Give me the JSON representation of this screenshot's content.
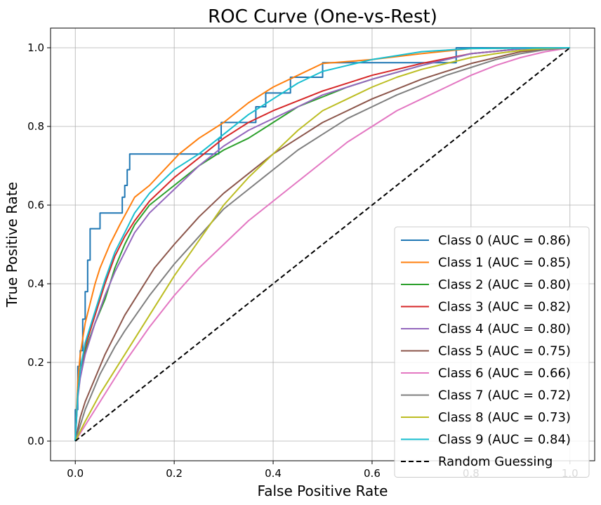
{
  "chart_data": {
    "type": "line",
    "title": "ROC Curve (One-vs-Rest)",
    "xlabel": "False Positive Rate",
    "ylabel": "True Positive Rate",
    "xlim": [
      -0.05,
      1.05
    ],
    "ylim": [
      -0.05,
      1.05
    ],
    "xticks": [
      0.0,
      0.2,
      0.4,
      0.6,
      0.8,
      1.0
    ],
    "yticks": [
      0.0,
      0.2,
      0.4,
      0.6,
      0.8,
      1.0
    ],
    "xtick_labels": [
      "0.0",
      "0.2",
      "0.4",
      "0.6",
      "0.8",
      "1.0"
    ],
    "ytick_labels": [
      "0.0",
      "0.2",
      "0.4",
      "0.6",
      "0.8",
      "1.0"
    ],
    "grid": true,
    "legend_position": "bottom-right",
    "series": [
      {
        "name": "Class 0 (AUC = 0.86)",
        "color": "#1f77b4",
        "step": true,
        "points": [
          [
            0,
            0
          ],
          [
            0,
            0.08
          ],
          [
            0.005,
            0.08
          ],
          [
            0.005,
            0.19
          ],
          [
            0.01,
            0.19
          ],
          [
            0.01,
            0.23
          ],
          [
            0.015,
            0.23
          ],
          [
            0.015,
            0.31
          ],
          [
            0.02,
            0.31
          ],
          [
            0.02,
            0.38
          ],
          [
            0.025,
            0.38
          ],
          [
            0.025,
            0.46
          ],
          [
            0.03,
            0.46
          ],
          [
            0.03,
            0.54
          ],
          [
            0.05,
            0.54
          ],
          [
            0.05,
            0.58
          ],
          [
            0.095,
            0.58
          ],
          [
            0.095,
            0.62
          ],
          [
            0.1,
            0.62
          ],
          [
            0.1,
            0.65
          ],
          [
            0.105,
            0.65
          ],
          [
            0.105,
            0.69
          ],
          [
            0.11,
            0.69
          ],
          [
            0.11,
            0.73
          ],
          [
            0.29,
            0.73
          ],
          [
            0.29,
            0.77
          ],
          [
            0.295,
            0.77
          ],
          [
            0.295,
            0.81
          ],
          [
            0.365,
            0.81
          ],
          [
            0.365,
            0.85
          ],
          [
            0.385,
            0.85
          ],
          [
            0.385,
            0.885
          ],
          [
            0.435,
            0.885
          ],
          [
            0.435,
            0.925
          ],
          [
            0.5,
            0.925
          ],
          [
            0.5,
            0.962
          ],
          [
            0.77,
            0.962
          ],
          [
            0.77,
            1.0
          ],
          [
            1.0,
            1.0
          ]
        ]
      },
      {
        "name": "Class 1 (AUC = 0.85)",
        "color": "#ff7f0e",
        "points": [
          [
            0,
            0
          ],
          [
            0.005,
            0.15
          ],
          [
            0.01,
            0.22
          ],
          [
            0.02,
            0.3
          ],
          [
            0.03,
            0.35
          ],
          [
            0.04,
            0.4
          ],
          [
            0.05,
            0.44
          ],
          [
            0.07,
            0.5
          ],
          [
            0.09,
            0.55
          ],
          [
            0.12,
            0.62
          ],
          [
            0.15,
            0.65
          ],
          [
            0.18,
            0.69
          ],
          [
            0.21,
            0.73
          ],
          [
            0.25,
            0.77
          ],
          [
            0.3,
            0.81
          ],
          [
            0.35,
            0.86
          ],
          [
            0.4,
            0.9
          ],
          [
            0.45,
            0.93
          ],
          [
            0.5,
            0.96
          ],
          [
            0.6,
            0.97
          ],
          [
            0.7,
            0.985
          ],
          [
            0.8,
            0.998
          ],
          [
            1.0,
            1.0
          ]
        ]
      },
      {
        "name": "Class 2 (AUC = 0.80)",
        "color": "#2ca02c",
        "points": [
          [
            0,
            0
          ],
          [
            0.005,
            0.12
          ],
          [
            0.01,
            0.18
          ],
          [
            0.02,
            0.23
          ],
          [
            0.04,
            0.3
          ],
          [
            0.06,
            0.36
          ],
          [
            0.08,
            0.44
          ],
          [
            0.1,
            0.5
          ],
          [
            0.12,
            0.55
          ],
          [
            0.15,
            0.6
          ],
          [
            0.2,
            0.65
          ],
          [
            0.25,
            0.7
          ],
          [
            0.3,
            0.74
          ],
          [
            0.35,
            0.77
          ],
          [
            0.4,
            0.81
          ],
          [
            0.45,
            0.85
          ],
          [
            0.5,
            0.875
          ],
          [
            0.55,
            0.9
          ],
          [
            0.6,
            0.92
          ],
          [
            0.7,
            0.955
          ],
          [
            0.8,
            0.985
          ],
          [
            0.9,
            0.997
          ],
          [
            1.0,
            1.0
          ]
        ]
      },
      {
        "name": "Class 3 (AUC = 0.82)",
        "color": "#d62728",
        "points": [
          [
            0,
            0
          ],
          [
            0.005,
            0.12
          ],
          [
            0.01,
            0.18
          ],
          [
            0.02,
            0.24
          ],
          [
            0.04,
            0.32
          ],
          [
            0.06,
            0.4
          ],
          [
            0.08,
            0.47
          ],
          [
            0.1,
            0.52
          ],
          [
            0.12,
            0.56
          ],
          [
            0.15,
            0.61
          ],
          [
            0.2,
            0.67
          ],
          [
            0.25,
            0.72
          ],
          [
            0.3,
            0.77
          ],
          [
            0.35,
            0.81
          ],
          [
            0.4,
            0.84
          ],
          [
            0.45,
            0.865
          ],
          [
            0.5,
            0.89
          ],
          [
            0.55,
            0.91
          ],
          [
            0.6,
            0.93
          ],
          [
            0.7,
            0.96
          ],
          [
            0.8,
            0.985
          ],
          [
            0.9,
            0.997
          ],
          [
            1.0,
            1.0
          ]
        ]
      },
      {
        "name": "Class 4 (AUC = 0.80)",
        "color": "#9467bd",
        "points": [
          [
            0,
            0
          ],
          [
            0.005,
            0.11
          ],
          [
            0.01,
            0.16
          ],
          [
            0.02,
            0.22
          ],
          [
            0.04,
            0.3
          ],
          [
            0.06,
            0.37
          ],
          [
            0.08,
            0.43
          ],
          [
            0.1,
            0.48
          ],
          [
            0.12,
            0.53
          ],
          [
            0.15,
            0.58
          ],
          [
            0.2,
            0.64
          ],
          [
            0.25,
            0.7
          ],
          [
            0.3,
            0.75
          ],
          [
            0.35,
            0.79
          ],
          [
            0.4,
            0.82
          ],
          [
            0.45,
            0.85
          ],
          [
            0.5,
            0.88
          ],
          [
            0.55,
            0.9
          ],
          [
            0.6,
            0.92
          ],
          [
            0.7,
            0.955
          ],
          [
            0.8,
            0.985
          ],
          [
            0.9,
            0.997
          ],
          [
            1.0,
            1.0
          ]
        ]
      },
      {
        "name": "Class 5 (AUC = 0.75)",
        "color": "#8c564b",
        "points": [
          [
            0,
            0
          ],
          [
            0.01,
            0.06
          ],
          [
            0.02,
            0.1
          ],
          [
            0.04,
            0.16
          ],
          [
            0.06,
            0.22
          ],
          [
            0.08,
            0.27
          ],
          [
            0.1,
            0.32
          ],
          [
            0.13,
            0.38
          ],
          [
            0.16,
            0.44
          ],
          [
            0.2,
            0.5
          ],
          [
            0.25,
            0.57
          ],
          [
            0.3,
            0.63
          ],
          [
            0.35,
            0.68
          ],
          [
            0.4,
            0.73
          ],
          [
            0.45,
            0.77
          ],
          [
            0.5,
            0.81
          ],
          [
            0.55,
            0.84
          ],
          [
            0.6,
            0.87
          ],
          [
            0.7,
            0.92
          ],
          [
            0.8,
            0.96
          ],
          [
            0.9,
            0.99
          ],
          [
            1.0,
            1.0
          ]
        ]
      },
      {
        "name": "Class 6 (AUC = 0.66)",
        "color": "#e377c2",
        "points": [
          [
            0,
            0
          ],
          [
            0.02,
            0.04
          ],
          [
            0.05,
            0.1
          ],
          [
            0.08,
            0.16
          ],
          [
            0.1,
            0.2
          ],
          [
            0.15,
            0.29
          ],
          [
            0.2,
            0.37
          ],
          [
            0.25,
            0.44
          ],
          [
            0.3,
            0.5
          ],
          [
            0.35,
            0.56
          ],
          [
            0.4,
            0.61
          ],
          [
            0.45,
            0.66
          ],
          [
            0.5,
            0.71
          ],
          [
            0.55,
            0.76
          ],
          [
            0.6,
            0.8
          ],
          [
            0.65,
            0.84
          ],
          [
            0.7,
            0.87
          ],
          [
            0.75,
            0.9
          ],
          [
            0.8,
            0.93
          ],
          [
            0.85,
            0.955
          ],
          [
            0.9,
            0.975
          ],
          [
            0.95,
            0.99
          ],
          [
            1.0,
            1.0
          ]
        ]
      },
      {
        "name": "Class 7 (AUC = 0.72)",
        "color": "#7f7f7f",
        "points": [
          [
            0,
            0
          ],
          [
            0.02,
            0.08
          ],
          [
            0.05,
            0.17
          ],
          [
            0.08,
            0.24
          ],
          [
            0.1,
            0.28
          ],
          [
            0.15,
            0.37
          ],
          [
            0.2,
            0.45
          ],
          [
            0.25,
            0.52
          ],
          [
            0.3,
            0.59
          ],
          [
            0.35,
            0.64
          ],
          [
            0.4,
            0.69
          ],
          [
            0.45,
            0.74
          ],
          [
            0.5,
            0.78
          ],
          [
            0.55,
            0.82
          ],
          [
            0.6,
            0.85
          ],
          [
            0.65,
            0.88
          ],
          [
            0.7,
            0.905
          ],
          [
            0.75,
            0.93
          ],
          [
            0.8,
            0.95
          ],
          [
            0.85,
            0.97
          ],
          [
            0.9,
            0.985
          ],
          [
            0.95,
            0.995
          ],
          [
            1.0,
            1.0
          ]
        ]
      },
      {
        "name": "Class 8 (AUC = 0.73)",
        "color": "#bcbd22",
        "points": [
          [
            0,
            0
          ],
          [
            0.02,
            0.05
          ],
          [
            0.05,
            0.12
          ],
          [
            0.08,
            0.18
          ],
          [
            0.1,
            0.22
          ],
          [
            0.15,
            0.32
          ],
          [
            0.2,
            0.42
          ],
          [
            0.25,
            0.51
          ],
          [
            0.3,
            0.6
          ],
          [
            0.35,
            0.67
          ],
          [
            0.4,
            0.73
          ],
          [
            0.45,
            0.79
          ],
          [
            0.5,
            0.84
          ],
          [
            0.55,
            0.87
          ],
          [
            0.6,
            0.9
          ],
          [
            0.65,
            0.925
          ],
          [
            0.7,
            0.945
          ],
          [
            0.75,
            0.96
          ],
          [
            0.8,
            0.975
          ],
          [
            0.85,
            0.985
          ],
          [
            0.9,
            0.993
          ],
          [
            0.95,
            0.998
          ],
          [
            1.0,
            1.0
          ]
        ]
      },
      {
        "name": "Class 9 (AUC = 0.84)",
        "color": "#17becf",
        "points": [
          [
            0,
            0
          ],
          [
            0.005,
            0.12
          ],
          [
            0.01,
            0.18
          ],
          [
            0.02,
            0.25
          ],
          [
            0.04,
            0.33
          ],
          [
            0.06,
            0.41
          ],
          [
            0.08,
            0.48
          ],
          [
            0.1,
            0.53
          ],
          [
            0.12,
            0.58
          ],
          [
            0.15,
            0.63
          ],
          [
            0.2,
            0.69
          ],
          [
            0.25,
            0.73
          ],
          [
            0.3,
            0.78
          ],
          [
            0.35,
            0.83
          ],
          [
            0.4,
            0.87
          ],
          [
            0.45,
            0.91
          ],
          [
            0.5,
            0.94
          ],
          [
            0.55,
            0.955
          ],
          [
            0.6,
            0.97
          ],
          [
            0.7,
            0.99
          ],
          [
            0.8,
            0.998
          ],
          [
            1.0,
            1.0
          ]
        ]
      },
      {
        "name": "Random Guessing",
        "color": "#000000",
        "dashed": true,
        "points": [
          [
            0,
            0
          ],
          [
            1,
            1
          ]
        ]
      }
    ]
  }
}
